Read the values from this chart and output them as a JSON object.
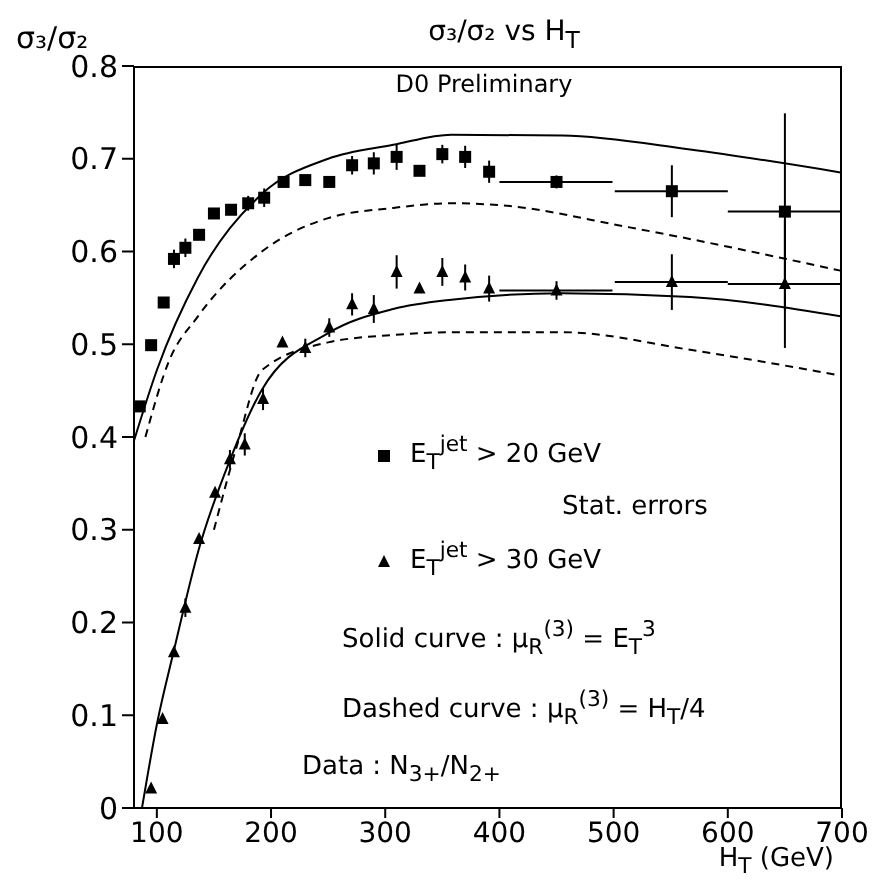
{
  "chart_data": {
    "type": "scatter",
    "title": "σ₃/σ₂ vs H$_{T}$",
    "subtitle": "D0 Preliminary",
    "xlabel": "H$_{T}$ (GeV)",
    "ylabel": "σ₃/σ₂",
    "xlim": [
      80,
      700
    ],
    "xticks": [
      100,
      200,
      300,
      400,
      500,
      600,
      700
    ],
    "ylim": [
      0,
      0.8
    ],
    "yticks": [
      0,
      0.1,
      0.2,
      0.3,
      0.4,
      0.5,
      0.6,
      0.7,
      0.8
    ],
    "legend": "right",
    "annotations": [
      "Stat. errors",
      "Solid curve : μ$_{R}$$^{(3)}$ = E$_{T}$$^{3}$",
      "Dashed curve : μ$_{R}$$^{(3)}$ = H$_{T}$/4",
      "Data : N$_{3+}$/N$_{2+}$"
    ],
    "series": [
      {
        "name": "E$_{T}$$^{jet}$ > 20 GeV",
        "color": "#000000",
        "marker": "square",
        "x": [
          85,
          95,
          106,
          115,
          125,
          137,
          150,
          165,
          180,
          194,
          211,
          230,
          251,
          271,
          290,
          310,
          330,
          350,
          370,
          391,
          450,
          551,
          650
        ],
        "values": [
          0.433,
          0.499,
          0.545,
          0.592,
          0.604,
          0.618,
          0.641,
          0.645,
          0.652,
          0.658,
          0.675,
          0.677,
          0.675,
          0.693,
          0.695,
          0.702,
          0.687,
          0.705,
          0.702,
          0.686,
          0.675,
          0.665,
          0.643
        ],
        "errors": [
          null,
          null,
          null,
          0.01,
          0.01,
          null,
          null,
          null,
          0.008,
          0.01,
          null,
          null,
          null,
          0.01,
          0.012,
          0.014,
          null,
          0.01,
          0.012,
          0.012,
          0.007,
          0.028,
          0.106
        ],
        "xerrors": [
          null,
          null,
          null,
          null,
          null,
          null,
          null,
          null,
          null,
          null,
          null,
          null,
          null,
          null,
          null,
          null,
          null,
          null,
          null,
          null,
          [
            400,
            499
          ],
          [
            501,
            600
          ],
          [
            600,
            700
          ]
        ]
      },
      {
        "name": "E$_{T}$$^{jet}$ > 30 GeV",
        "color": "#000000",
        "marker": "triangle",
        "x": [
          95,
          105,
          115,
          125,
          137,
          151,
          164,
          177,
          193,
          210,
          230,
          251,
          271,
          290,
          310,
          330,
          350,
          370,
          391,
          450,
          551,
          650
        ],
        "values": [
          0.021,
          0.096,
          0.168,
          0.216,
          0.29,
          0.34,
          0.376,
          0.392,
          0.441,
          0.502,
          0.496,
          0.518,
          0.543,
          0.538,
          0.578,
          0.56,
          0.578,
          0.572,
          0.56,
          0.558,
          0.567,
          0.565
        ],
        "errors": [
          null,
          null,
          null,
          0.01,
          null,
          null,
          0.01,
          0.012,
          0.012,
          null,
          0.01,
          0.01,
          0.012,
          0.015,
          0.018,
          null,
          0.015,
          0.014,
          0.014,
          0.01,
          0.03,
          0.069
        ],
        "xerrors": [
          null,
          null,
          null,
          null,
          null,
          null,
          null,
          null,
          null,
          null,
          null,
          null,
          null,
          null,
          null,
          null,
          null,
          null,
          null,
          [
            400,
            499
          ],
          [
            501,
            600
          ],
          [
            600,
            700
          ]
        ]
      },
      {
        "type": "line",
        "color": "#000000",
        "marker": "none",
        "line_style": "solid",
        "x": [
          80,
          100,
          136,
          192,
          250,
          307,
          358,
          455,
          567,
          700
        ],
        "values": [
          0.396,
          0.472,
          0.572,
          0.662,
          0.7,
          0.715,
          0.726,
          0.725,
          0.71,
          0.685
        ]
      },
      {
        "type": "line",
        "color": "#000000",
        "marker": "none",
        "line_style": "dashed",
        "x": [
          90,
          110,
          136,
          192,
          250,
          307,
          358,
          400,
          514,
          700
        ],
        "values": [
          0.4,
          0.48,
          0.53,
          0.6,
          0.636,
          0.647,
          0.652,
          0.65,
          0.626,
          0.579
        ]
      },
      {
        "type": "line",
        "color": "#000000",
        "marker": "none",
        "line_style": "solid",
        "x": [
          87,
          100,
          115,
          137,
          164,
          192,
          250,
          307,
          358,
          455,
          567,
          700
        ],
        "values": [
          0,
          0.09,
          0.17,
          0.28,
          0.375,
          0.451,
          0.512,
          0.538,
          0.548,
          0.555,
          0.551,
          0.53
        ]
      },
      {
        "type": "line",
        "color": "#000000",
        "marker": "none",
        "line_style": "dashed",
        "x": [
          150,
          170,
          192,
          250,
          307,
          358,
          455,
          567,
          700
        ],
        "values": [
          0.3,
          0.39,
          0.472,
          0.502,
          0.51,
          0.513,
          0.513,
          0.494,
          0.466
        ]
      }
    ]
  }
}
